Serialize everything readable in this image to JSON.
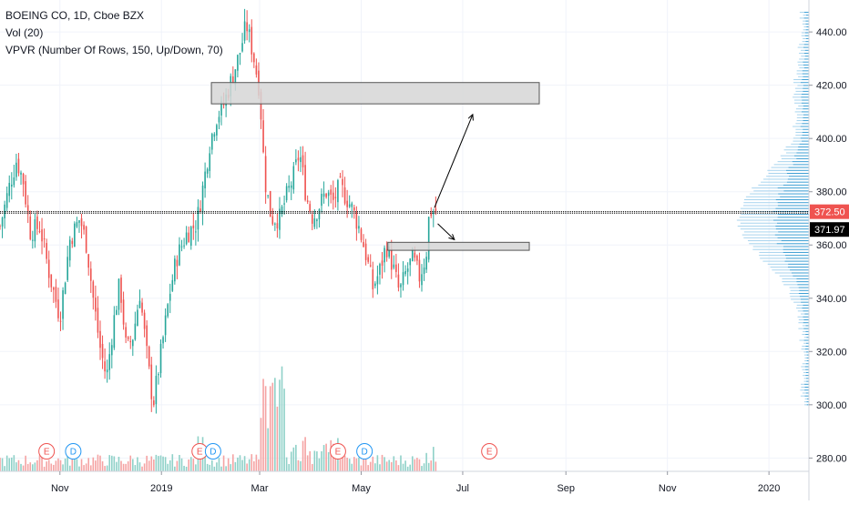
{
  "legend": {
    "symbol": "BOEING CO, 1D, Cboe BZX",
    "volume": "Vol (20)",
    "vpvr": "VPVR (Number Of Rows, 150, Up/Down, 70)"
  },
  "colors": {
    "up": "#26a69a",
    "down": "#ef5350",
    "vol_up": "#8fd1c8",
    "vol_down": "#f5a3a3",
    "vpvr_up": "#3d9fd4",
    "vpvr_down": "#a8d4ee",
    "price_line": "#000000",
    "last_price_tag": "#ef5350",
    "zone_fill": "#d6d6d6"
  },
  "chart_data": {
    "type": "candlestick",
    "y_axis": {
      "ticks": [
        "440.00",
        "420.00",
        "400.00",
        "380.00",
        "360.00",
        "340.00",
        "320.00",
        "300.00",
        "280.00"
      ],
      "tick_values": [
        440,
        420,
        400,
        380,
        360,
        340,
        320,
        300,
        280
      ],
      "range": [
        275,
        452
      ]
    },
    "x_axis": {
      "ticks": [
        "Nov",
        "2019",
        "Mar",
        "May",
        "Jul",
        "Sep",
        "Nov",
        "2020"
      ],
      "tick_days": [
        30,
        91,
        150,
        211,
        272,
        334,
        395,
        456
      ],
      "range_days": [
        -6,
        480
      ],
      "note": "day offsets from 2018-10-02"
    },
    "price_labels": {
      "last": "372.50",
      "current": "371.97",
      "last_value": 372.5,
      "current_value": 371.97
    },
    "events": [
      {
        "type": "E",
        "day": 22
      },
      {
        "type": "D",
        "day": 38
      },
      {
        "type": "E",
        "day": 114
      },
      {
        "type": "D",
        "day": 122
      },
      {
        "type": "E",
        "day": 197
      },
      {
        "type": "D",
        "day": 213
      },
      {
        "type": "E",
        "day": 288
      }
    ],
    "zones": [
      {
        "day_start": 121,
        "day_end": 318,
        "price_low": 413,
        "price_high": 421
      },
      {
        "day_start": 227,
        "day_end": 312,
        "price_low": 358,
        "price_high": 361
      }
    ],
    "arrows": [
      {
        "from": {
          "day": 255,
          "price": 374
        },
        "to": {
          "day": 278,
          "price": 409
        }
      },
      {
        "from": {
          "day": 257,
          "price": 368
        },
        "to": {
          "day": 267,
          "price": 362
        }
      }
    ],
    "anchors": [
      {
        "day": -6,
        "price": 367
      },
      {
        "day": 0,
        "price": 383
      },
      {
        "day": 4,
        "price": 392
      },
      {
        "day": 8,
        "price": 384
      },
      {
        "day": 12,
        "price": 365
      },
      {
        "day": 18,
        "price": 367
      },
      {
        "day": 24,
        "price": 348
      },
      {
        "day": 30,
        "price": 333
      },
      {
        "day": 36,
        "price": 362
      },
      {
        "day": 42,
        "price": 370
      },
      {
        "day": 46,
        "price": 360
      },
      {
        "day": 50,
        "price": 340
      },
      {
        "day": 54,
        "price": 322
      },
      {
        "day": 58,
        "price": 310
      },
      {
        "day": 62,
        "price": 330
      },
      {
        "day": 66,
        "price": 346
      },
      {
        "day": 70,
        "price": 320
      },
      {
        "day": 74,
        "price": 326
      },
      {
        "day": 78,
        "price": 342
      },
      {
        "day": 82,
        "price": 320
      },
      {
        "day": 86,
        "price": 300
      },
      {
        "day": 92,
        "price": 325
      },
      {
        "day": 96,
        "price": 342
      },
      {
        "day": 100,
        "price": 355
      },
      {
        "day": 106,
        "price": 364
      },
      {
        "day": 112,
        "price": 368
      },
      {
        "day": 116,
        "price": 382
      },
      {
        "day": 120,
        "price": 398
      },
      {
        "day": 124,
        "price": 408
      },
      {
        "day": 128,
        "price": 412
      },
      {
        "day": 134,
        "price": 424
      },
      {
        "day": 138,
        "price": 432
      },
      {
        "day": 142,
        "price": 443
      },
      {
        "day": 146,
        "price": 432
      },
      {
        "day": 150,
        "price": 418
      },
      {
        "day": 153,
        "price": 385
      },
      {
        "day": 157,
        "price": 370
      },
      {
        "day": 162,
        "price": 370
      },
      {
        "day": 166,
        "price": 378
      },
      {
        "day": 170,
        "price": 385
      },
      {
        "day": 174,
        "price": 395
      },
      {
        "day": 178,
        "price": 378
      },
      {
        "day": 182,
        "price": 370
      },
      {
        "day": 186,
        "price": 375
      },
      {
        "day": 190,
        "price": 380
      },
      {
        "day": 194,
        "price": 376
      },
      {
        "day": 198,
        "price": 382
      },
      {
        "day": 202,
        "price": 378
      },
      {
        "day": 206,
        "price": 373
      },
      {
        "day": 210,
        "price": 366
      },
      {
        "day": 214,
        "price": 356
      },
      {
        "day": 218,
        "price": 344
      },
      {
        "day": 222,
        "price": 350
      },
      {
        "day": 226,
        "price": 360
      },
      {
        "day": 230,
        "price": 352
      },
      {
        "day": 234,
        "price": 342
      },
      {
        "day": 238,
        "price": 350
      },
      {
        "day": 242,
        "price": 355
      },
      {
        "day": 246,
        "price": 348
      },
      {
        "day": 250,
        "price": 356
      },
      {
        "day": 252,
        "price": 373
      },
      {
        "day": 256,
        "price": 372
      }
    ]
  }
}
